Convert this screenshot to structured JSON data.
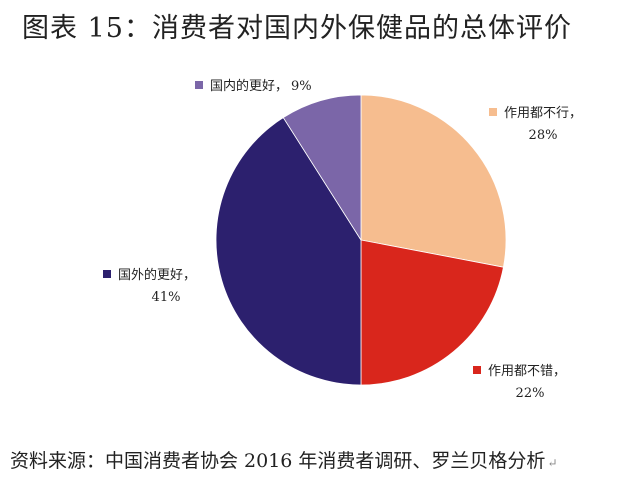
{
  "header": {
    "title": "图表 15：消费者对国内外保健品的总体评价"
  },
  "footer": {
    "source": "资料来源：中国消费者协会 2016 年消费者调研、罗兰贝格分析"
  },
  "chart_data": {
    "type": "pie",
    "title": "图表 15：消费者对国内外保健品的总体评价",
    "slices": [
      {
        "name": "作用都不行，",
        "value": 28,
        "label": "28%",
        "color": "#f6bd8f"
      },
      {
        "name": "作用都不错，",
        "value": 22,
        "label": "22%",
        "color": "#d9261c"
      },
      {
        "name": "国外的更好，",
        "value": 41,
        "label": "41%",
        "color": "#2c206e"
      },
      {
        "name": "国内的更好，",
        "value": 9,
        "label": "9%",
        "color": "#7b66a8"
      }
    ],
    "start": "12 o'clock",
    "direction": "clockwise",
    "legend": "labels-outside"
  }
}
